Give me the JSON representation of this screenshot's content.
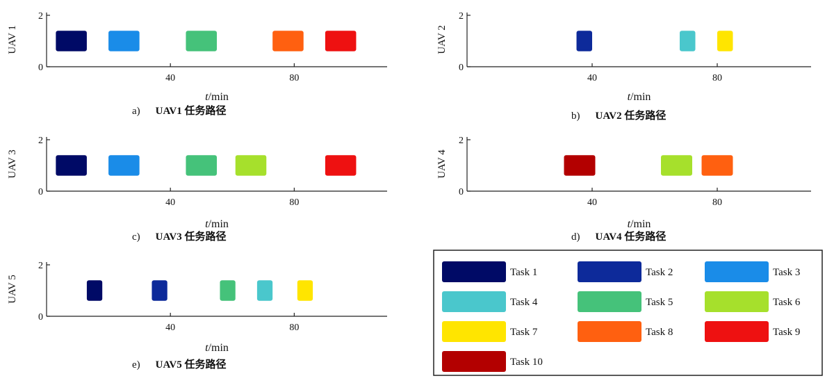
{
  "chart_data": {
    "type": "gantt",
    "xlabel_var": "t",
    "xlabel_unit": "/min",
    "y_ticks": [
      "0",
      "2"
    ],
    "x_ticks": [
      "40",
      "80"
    ],
    "x_tick_values": [
      40,
      80
    ],
    "xlim": [
      0,
      110
    ],
    "ylim": [
      0,
      2
    ],
    "tasks": [
      {
        "name": "Task 1",
        "color": "#000a66"
      },
      {
        "name": "Task 2",
        "color": "#0d2a9a"
      },
      {
        "name": "Task 3",
        "color": "#1a8ce8"
      },
      {
        "name": "Task 4",
        "color": "#4ac7cc"
      },
      {
        "name": "Task 5",
        "color": "#45c27a"
      },
      {
        "name": "Task 6",
        "color": "#a6e02c"
      },
      {
        "name": "Task 7",
        "color": "#ffe500"
      },
      {
        "name": "Task 8",
        "color": "#ff6010"
      },
      {
        "name": "Task 9",
        "color": "#ee1111"
      },
      {
        "name": "Task 10",
        "color": "#b30000"
      }
    ],
    "panels": [
      {
        "ylabel": "UAV 1",
        "letter": "a)",
        "caption": "UAV1 任务路径",
        "bars": [
          {
            "task": 1,
            "start": 3,
            "end": 13
          },
          {
            "task": 3,
            "start": 20,
            "end": 30
          },
          {
            "task": 5,
            "start": 45,
            "end": 55
          },
          {
            "task": 8,
            "start": 73,
            "end": 83
          },
          {
            "task": 9,
            "start": 90,
            "end": 100
          }
        ]
      },
      {
        "ylabel": "UAV 2",
        "letter": "b)",
        "caption": "UAV2 任务路径",
        "bars": [
          {
            "task": 2,
            "start": 35,
            "end": 40
          },
          {
            "task": 4,
            "start": 68,
            "end": 73
          },
          {
            "task": 7,
            "start": 80,
            "end": 85
          }
        ]
      },
      {
        "ylabel": "UAV 3",
        "letter": "c)",
        "caption": "UAV3 任务路径",
        "bars": [
          {
            "task": 1,
            "start": 3,
            "end": 13
          },
          {
            "task": 3,
            "start": 20,
            "end": 30
          },
          {
            "task": 5,
            "start": 45,
            "end": 55
          },
          {
            "task": 6,
            "start": 61,
            "end": 71
          },
          {
            "task": 9,
            "start": 90,
            "end": 100
          }
        ]
      },
      {
        "ylabel": "UAV 4",
        "letter": "d)",
        "caption": "UAV4 任务路径",
        "bars": [
          {
            "task": 10,
            "start": 31,
            "end": 41
          },
          {
            "task": 6,
            "start": 62,
            "end": 72
          },
          {
            "task": 8,
            "start": 75,
            "end": 85
          }
        ]
      },
      {
        "ylabel": "UAV 5",
        "letter": "e)",
        "caption": "UAV5 任务路径",
        "bars": [
          {
            "task": 1,
            "start": 13,
            "end": 18
          },
          {
            "task": 2,
            "start": 34,
            "end": 39
          },
          {
            "task": 5,
            "start": 56,
            "end": 61
          },
          {
            "task": 4,
            "start": 68,
            "end": 73
          },
          {
            "task": 7,
            "start": 81,
            "end": 86
          }
        ]
      }
    ],
    "legend": {
      "placement": "bottom-right",
      "columns": 3
    }
  }
}
